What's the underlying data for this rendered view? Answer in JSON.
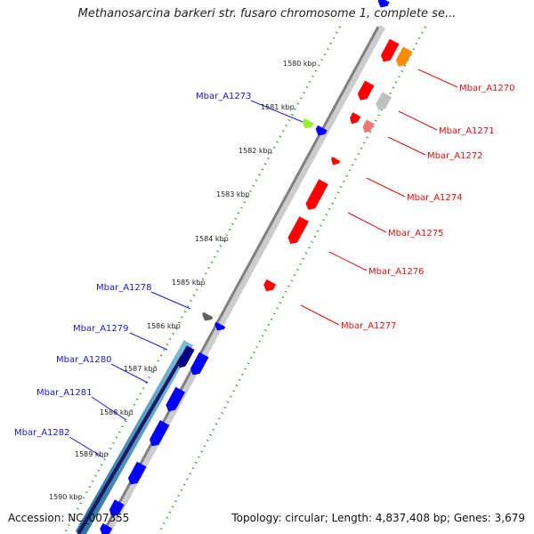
{
  "title": "Methanosarcina barkeri str. fusaro chromosome 1, complete se...",
  "footer": {
    "accession": "Accession: NC_007355",
    "stats": "Topology: circular; Length: 4,837,408 bp; Genes: 3,679"
  },
  "scale_ticks": [
    "1580 kbp",
    "1581 kbp",
    "1582 kbp",
    "1583 kbp",
    "1584 kbp",
    "1585 kbp",
    "1586 kbp",
    "1587 kbp",
    "1588 kbp",
    "1589 kbp",
    "1590 kbp"
  ],
  "genes_left": [
    "Mbar_A1273",
    "Mbar_A1278",
    "Mbar_A1279",
    "Mbar_A1280",
    "Mbar_A1281",
    "Mbar_A1282"
  ],
  "genes_right": [
    "Mbar_A1270",
    "Mbar_A1271",
    "Mbar_A1272",
    "Mbar_A1274",
    "Mbar_A1275",
    "Mbar_A1276",
    "Mbar_A1277"
  ],
  "colors": {
    "forward_gene": "#ff0000",
    "reverse_gene": "#0000ff",
    "orange_gene": "#ff8c00",
    "gray_gene": "#c0c0c0",
    "green_gene": "#99ee33",
    "backbone": "#808080",
    "dots": "#228822",
    "label_blue": "#1a1acc",
    "label_red": "#dd1111"
  }
}
